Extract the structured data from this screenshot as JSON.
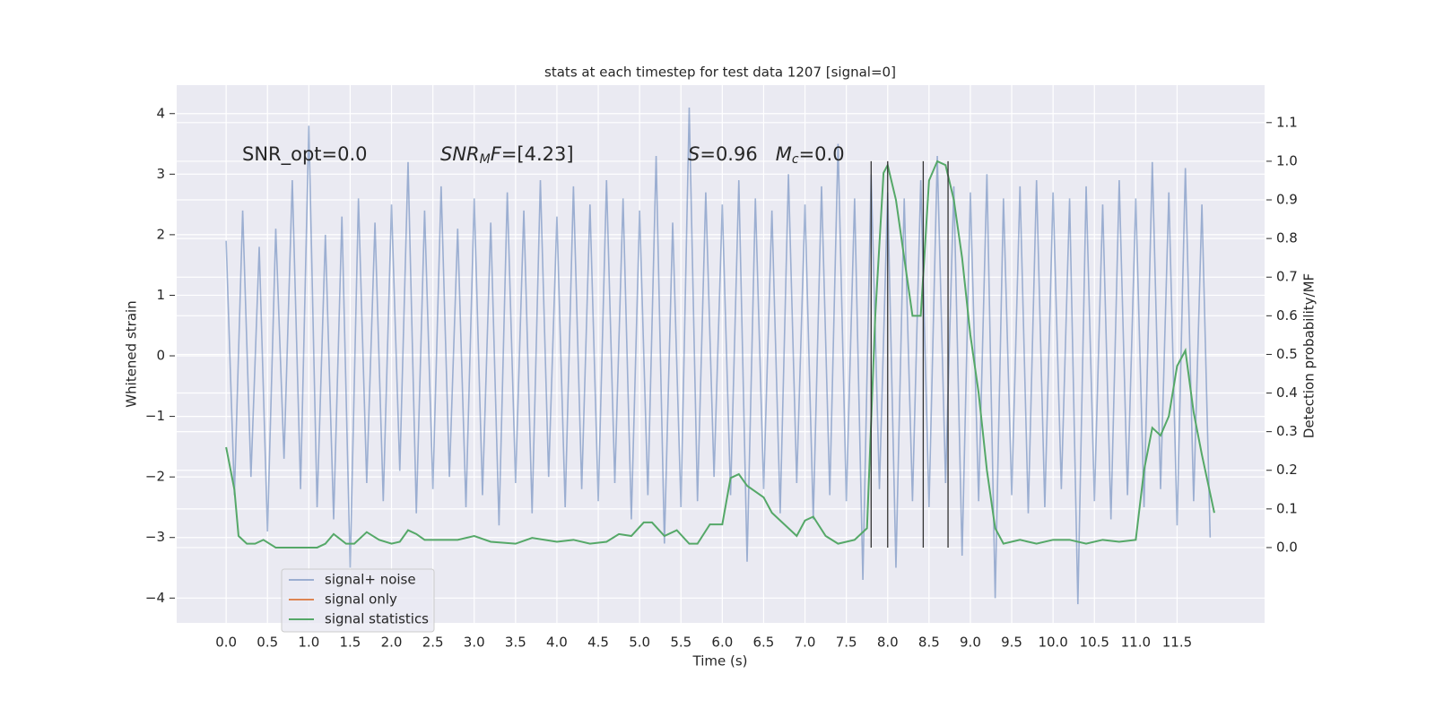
{
  "chart_data": {
    "type": "line",
    "title": "stats at each timestep for test data 1207 [signal=0]",
    "xlabel": "Time (s)",
    "ylabel": "Whitened strain",
    "y2label": "Detection probability/MF",
    "xlim": [
      -0.598,
      12.558
    ],
    "ylim": [
      -4.41,
      4.47
    ],
    "y2lim": [
      -0.195,
      1.197
    ],
    "grid": true,
    "legend": "lower left",
    "xticks": [
      {
        "value": 0,
        "label": "0.0"
      },
      0.5,
      {
        "value": 1,
        "label": "1.0"
      },
      1.5,
      {
        "value": 2,
        "label": "2.0"
      },
      2.5,
      {
        "value": 3,
        "label": "3.0"
      },
      3.5,
      {
        "value": 4,
        "label": "4.0"
      },
      4.5,
      {
        "value": 5,
        "label": "5.0"
      },
      5.5,
      {
        "value": 6,
        "label": "6.0"
      },
      6.5,
      {
        "value": 7,
        "label": "7.0"
      },
      7.5,
      {
        "value": 8,
        "label": "8.0"
      },
      8.5,
      {
        "value": 9,
        "label": "9.0"
      },
      9.5,
      {
        "value": 10,
        "label": "10.0"
      },
      10.5,
      {
        "value": 11,
        "label": "11.0"
      },
      11.5
    ],
    "yticks": [
      {
        "value": -4,
        "label": "−4"
      },
      {
        "value": -3,
        "label": "−3"
      },
      {
        "value": -2,
        "label": "−2"
      },
      {
        "value": -1,
        "label": "−1"
      },
      0,
      1,
      2,
      3,
      4
    ],
    "y2ticks": [
      {
        "value": 0,
        "label": "0.0"
      },
      0.1,
      0.2,
      0.3,
      0.4,
      0.5,
      0.6,
      0.7,
      0.8,
      0.9,
      {
        "value": 1,
        "label": "1.0"
      },
      1.1
    ],
    "annotations": [
      {
        "parts": [
          {
            "text": "SNR_opt=0.0"
          }
        ]
      },
      {
        "parts": [
          {
            "text": "SNR",
            "style": "italic"
          },
          {
            "text": "M",
            "style": "italic-sub"
          },
          {
            "text": "F",
            "style": "italic"
          },
          {
            "text": "=[4.23]"
          }
        ]
      },
      {
        "parts": [
          {
            "text": "S",
            "style": "italic"
          },
          {
            "text": "=0.96   "
          },
          {
            "text": "M",
            "style": "italic"
          },
          {
            "text": "c",
            "style": "italic-sub"
          },
          {
            "text": "=0.0"
          }
        ]
      }
    ],
    "vlines": {
      "x": [
        7.8,
        8.0,
        8.43,
        8.73
      ],
      "ymin": 0,
      "ymax": 1.0,
      "axis": "y2",
      "color": "#333333"
    },
    "series": [
      {
        "name": "signal+ noise",
        "color": "#4c72b0",
        "alpha": 0.5,
        "x": [
          0.0,
          0.1,
          0.2,
          0.3,
          0.4,
          0.5,
          0.6,
          0.7,
          0.8,
          0.9,
          1.0,
          1.1,
          1.2,
          1.3,
          1.4,
          1.5,
          1.6,
          1.7,
          1.8,
          1.9,
          2.0,
          2.1,
          2.2,
          2.3,
          2.4,
          2.5,
          2.6,
          2.7,
          2.8,
          2.9,
          3.0,
          3.1,
          3.2,
          3.3,
          3.4,
          3.5,
          3.6,
          3.7,
          3.8,
          3.9,
          4.0,
          4.1,
          4.2,
          4.3,
          4.4,
          4.5,
          4.6,
          4.7,
          4.8,
          4.9,
          5.0,
          5.1,
          5.2,
          5.3,
          5.4,
          5.5,
          5.6,
          5.7,
          5.8,
          5.9,
          6.0,
          6.1,
          6.2,
          6.3,
          6.4,
          6.5,
          6.6,
          6.7,
          6.8,
          6.9,
          7.0,
          7.1,
          7.2,
          7.3,
          7.4,
          7.5,
          7.6,
          7.7,
          7.8,
          7.9,
          8.0,
          8.1,
          8.2,
          8.3,
          8.4,
          8.5,
          8.6,
          8.7,
          8.8,
          8.9,
          9.0,
          9.1,
          9.2,
          9.3,
          9.4,
          9.5,
          9.6,
          9.7,
          9.8,
          9.9,
          10.0,
          10.1,
          10.2,
          10.3,
          10.4,
          10.5,
          10.6,
          10.7,
          10.8,
          10.9,
          11.0,
          11.1,
          11.2,
          11.3,
          11.4,
          11.5,
          11.6,
          11.7,
          11.8,
          11.9
        ],
        "values": [
          1.9,
          -2.3,
          2.4,
          -2.0,
          1.8,
          -2.9,
          2.1,
          -1.7,
          2.9,
          -2.2,
          3.8,
          -2.5,
          2.0,
          -2.7,
          2.3,
          -3.5,
          2.6,
          -2.1,
          2.2,
          -2.4,
          2.5,
          -1.9,
          3.2,
          -2.6,
          2.4,
          -2.2,
          2.8,
          -2.0,
          2.1,
          -2.5,
          2.6,
          -2.3,
          2.2,
          -2.8,
          2.7,
          -2.1,
          2.4,
          -2.6,
          2.9,
          -2.0,
          2.3,
          -2.5,
          2.8,
          -2.2,
          2.5,
          -2.4,
          2.9,
          -2.1,
          2.6,
          -2.7,
          2.4,
          -2.3,
          3.3,
          -3.1,
          2.2,
          -2.5,
          4.1,
          -2.4,
          2.7,
          -2.0,
          2.5,
          -2.3,
          2.9,
          -3.4,
          2.6,
          -2.2,
          2.4,
          -2.6,
          3.0,
          -2.1,
          2.5,
          -2.7,
          2.8,
          -2.3,
          3.5,
          -2.4,
          2.6,
          -3.7,
          3.0,
          -2.2,
          2.7,
          -3.5,
          2.6,
          -2.4,
          2.9,
          -2.5,
          3.3,
          -2.1,
          2.8,
          -3.3,
          2.7,
          -2.4,
          3.0,
          -4.0,
          2.6,
          -2.3,
          2.8,
          -2.6,
          2.9,
          -2.5,
          2.7,
          -2.2,
          2.6,
          -4.1,
          2.8,
          -2.4,
          2.5,
          -2.7,
          2.9,
          -2.3,
          2.6,
          -2.5,
          3.2,
          -2.2,
          2.7,
          -2.8,
          3.1,
          -2.4,
          2.5,
          -3.0
        ]
      },
      {
        "name": "signal only",
        "color": "#dd8452"
      },
      {
        "name": "signal statistics",
        "color": "#55a868",
        "axis": "y2",
        "x": [
          0.0,
          0.1,
          0.15,
          0.25,
          0.35,
          0.45,
          0.6,
          0.8,
          1.0,
          1.1,
          1.2,
          1.3,
          1.45,
          1.55,
          1.7,
          1.85,
          2.0,
          2.1,
          2.2,
          2.3,
          2.4,
          2.6,
          2.8,
          3.0,
          3.2,
          3.5,
          3.7,
          4.0,
          4.2,
          4.4,
          4.6,
          4.75,
          4.9,
          5.05,
          5.15,
          5.3,
          5.45,
          5.6,
          5.7,
          5.85,
          6.0,
          6.1,
          6.2,
          6.3,
          6.5,
          6.6,
          6.8,
          6.9,
          7.0,
          7.1,
          7.25,
          7.4,
          7.6,
          7.75,
          7.85,
          7.95,
          8.0,
          8.1,
          8.2,
          8.3,
          8.4,
          8.5,
          8.6,
          8.7,
          8.8,
          8.9,
          9.0,
          9.1,
          9.2,
          9.3,
          9.4,
          9.6,
          9.8,
          10.0,
          10.2,
          10.4,
          10.6,
          10.8,
          11.0,
          11.1,
          11.2,
          11.3,
          11.4,
          11.5,
          11.6,
          11.7,
          11.8,
          11.95
        ],
        "values": [
          0.26,
          0.15,
          0.03,
          0.01,
          0.01,
          0.02,
          0.0,
          0.0,
          0.0,
          0.0,
          0.01,
          0.035,
          0.01,
          0.01,
          0.04,
          0.02,
          0.01,
          0.015,
          0.045,
          0.035,
          0.02,
          0.02,
          0.02,
          0.03,
          0.015,
          0.01,
          0.025,
          0.015,
          0.02,
          0.01,
          0.015,
          0.035,
          0.03,
          0.065,
          0.065,
          0.03,
          0.045,
          0.01,
          0.01,
          0.06,
          0.06,
          0.18,
          0.19,
          0.16,
          0.13,
          0.09,
          0.05,
          0.03,
          0.07,
          0.08,
          0.03,
          0.01,
          0.02,
          0.05,
          0.6,
          0.97,
          0.99,
          0.9,
          0.75,
          0.6,
          0.6,
          0.95,
          1.0,
          0.99,
          0.9,
          0.75,
          0.55,
          0.4,
          0.2,
          0.05,
          0.01,
          0.02,
          0.01,
          0.02,
          0.02,
          0.01,
          0.02,
          0.015,
          0.02,
          0.2,
          0.31,
          0.29,
          0.34,
          0.47,
          0.51,
          0.35,
          0.24,
          0.09
        ]
      }
    ]
  }
}
